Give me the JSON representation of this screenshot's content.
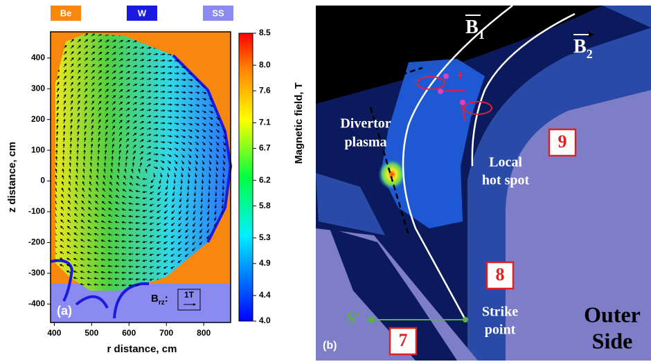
{
  "chart_data": {
    "type": "vectorfield",
    "x_label": "r distance, cm",
    "y_label": "z distance, cm",
    "xlim": [
      390,
      872
    ],
    "xticks": [
      400,
      500,
      600,
      700,
      800
    ],
    "ylim": [
      -460,
      485
    ],
    "yticks": [
      -400,
      -300,
      -200,
      -100,
      0,
      100,
      200,
      300,
      400
    ],
    "colorbar": {
      "label": "Magnetic field, T",
      "lim": [
        4.0,
        8.5
      ],
      "ticks": [
        {
          "value": 4,
          "label": "4.0"
        },
        4.4,
        4.9,
        5.3,
        5.8,
        6.2,
        6.7,
        7.1,
        7.6,
        {
          "value": 8,
          "label": "8.0"
        },
        8.5
      ]
    },
    "materials": [
      {
        "name": "Be",
        "color": "#f7870f"
      },
      {
        "name": "W",
        "color": "#1a1ae0"
      },
      {
        "name": "SS",
        "color": "#8a8af0"
      }
    ],
    "panel_label": "(a)",
    "scale_arrow": {
      "symbol": "B",
      "subscript": "rz",
      "text": "1T"
    }
  },
  "diagram": {
    "panel_label": "(b)",
    "b1": {
      "symbol": "B",
      "subscript": "1"
    },
    "b2": {
      "symbol": "B",
      "subscript": "2"
    },
    "divertor_label": [
      "Divertor",
      "plasma"
    ],
    "hot_spot_label": [
      "Local",
      "hot spot"
    ],
    "strike_label": [
      "Strike",
      "point"
    ],
    "outer_label": [
      "Outer",
      "Side"
    ],
    "s_label": "S'",
    "tiles": [
      "9",
      "8",
      "7"
    ]
  }
}
